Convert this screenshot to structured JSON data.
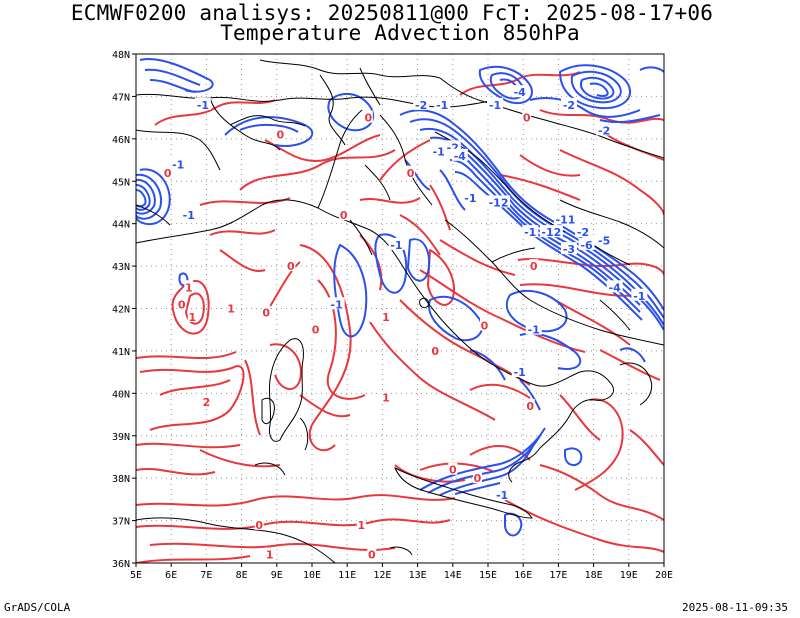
{
  "title": {
    "line1": "ECMWF0200 analisys: 20250811@00 FcT: 2025-08-17+06",
    "line2": "Temperature Advection 850hPa"
  },
  "map": {
    "lon_labels": [
      "5E",
      "6E",
      "7E",
      "8E",
      "9E",
      "10E",
      "11E",
      "12E",
      "13E",
      "14E",
      "15E",
      "16E",
      "17E",
      "18E",
      "19E",
      "20E"
    ],
    "lat_labels": [
      "48N",
      "47N",
      "46N",
      "45N",
      "44N",
      "43N",
      "42N",
      "41N",
      "40N",
      "39N",
      "38N",
      "37N",
      "36N"
    ],
    "lon_range": [
      5,
      20
    ],
    "lat_range": [
      36,
      48
    ],
    "grid": true,
    "colors": {
      "positive": "#e8383d",
      "negative": "#2b50ee",
      "coast": "#000000",
      "grid": "#999999"
    },
    "contour_labels": [
      {
        "text": "0",
        "lon": 16.1,
        "lat": 46.5,
        "color": "positive"
      },
      {
        "text": "-1",
        "lon": 6.9,
        "lat": 46.8,
        "color": "negative"
      },
      {
        "text": "-2",
        "lon": 13.1,
        "lat": 46.8,
        "color": "negative"
      },
      {
        "text": "-1",
        "lon": 13.7,
        "lat": 46.8,
        "color": "negative"
      },
      {
        "text": "-1",
        "lon": 15.2,
        "lat": 46.8,
        "color": "negative"
      },
      {
        "text": "-4",
        "lon": 15.9,
        "lat": 47.1,
        "color": "negative"
      },
      {
        "text": "-2",
        "lon": 17.3,
        "lat": 46.8,
        "color": "negative"
      },
      {
        "text": "-2",
        "lon": 18.3,
        "lat": 46.2,
        "color": "negative"
      },
      {
        "text": "0",
        "lon": 11.6,
        "lat": 46.5,
        "color": "positive"
      },
      {
        "text": "-1",
        "lon": 6.2,
        "lat": 45.4,
        "color": "negative"
      },
      {
        "text": "0",
        "lon": 5.9,
        "lat": 45.2,
        "color": "positive"
      },
      {
        "text": "-1",
        "lon": 6.5,
        "lat": 44.2,
        "color": "negative"
      },
      {
        "text": "-2",
        "lon": 14.0,
        "lat": 45.8,
        "color": "negative"
      },
      {
        "text": "-4",
        "lon": 14.2,
        "lat": 45.6,
        "color": "negative"
      },
      {
        "text": "-1",
        "lon": 13.6,
        "lat": 45.7,
        "color": "negative"
      },
      {
        "text": "0",
        "lon": 9.1,
        "lat": 46.1,
        "color": "positive"
      },
      {
        "text": "0",
        "lon": 12.8,
        "lat": 45.2,
        "color": "positive"
      },
      {
        "text": "-1",
        "lon": 14.5,
        "lat": 44.6,
        "color": "negative"
      },
      {
        "text": "-12",
        "lon": 15.3,
        "lat": 44.5,
        "color": "negative"
      },
      {
        "text": "-11",
        "lon": 17.2,
        "lat": 44.1,
        "color": "negative"
      },
      {
        "text": "-12",
        "lon": 16.8,
        "lat": 43.8,
        "color": "negative"
      },
      {
        "text": "-2",
        "lon": 17.7,
        "lat": 43.8,
        "color": "negative"
      },
      {
        "text": "-5",
        "lon": 18.3,
        "lat": 43.6,
        "color": "negative"
      },
      {
        "text": "-3",
        "lon": 17.3,
        "lat": 43.4,
        "color": "negative"
      },
      {
        "text": "-6",
        "lon": 17.8,
        "lat": 43.5,
        "color": "negative"
      },
      {
        "text": "-1",
        "lon": 16.2,
        "lat": 43.8,
        "color": "negative"
      },
      {
        "text": "-1",
        "lon": 12.4,
        "lat": 43.5,
        "color": "negative"
      },
      {
        "text": "0",
        "lon": 16.3,
        "lat": 43.0,
        "color": "positive"
      },
      {
        "text": "-4",
        "lon": 18.6,
        "lat": 42.5,
        "color": "negative"
      },
      {
        "text": "-1",
        "lon": 19.3,
        "lat": 42.3,
        "color": "negative"
      },
      {
        "text": "0",
        "lon": 10.9,
        "lat": 44.2,
        "color": "positive"
      },
      {
        "text": "0",
        "lon": 9.4,
        "lat": 43.0,
        "color": "positive"
      },
      {
        "text": "1",
        "lon": 6.5,
        "lat": 42.5,
        "color": "positive"
      },
      {
        "text": "0",
        "lon": 6.3,
        "lat": 42.1,
        "color": "positive"
      },
      {
        "text": "1",
        "lon": 7.7,
        "lat": 42.0,
        "color": "positive"
      },
      {
        "text": "1",
        "lon": 6.6,
        "lat": 41.8,
        "color": "positive"
      },
      {
        "text": "0",
        "lon": 8.7,
        "lat": 41.9,
        "color": "positive"
      },
      {
        "text": "-1",
        "lon": 10.7,
        "lat": 42.1,
        "color": "negative"
      },
      {
        "text": "0",
        "lon": 10.1,
        "lat": 41.5,
        "color": "positive"
      },
      {
        "text": "1",
        "lon": 12.1,
        "lat": 41.8,
        "color": "positive"
      },
      {
        "text": "0",
        "lon": 14.9,
        "lat": 41.6,
        "color": "positive"
      },
      {
        "text": "-1",
        "lon": 16.3,
        "lat": 41.5,
        "color": "negative"
      },
      {
        "text": "0",
        "lon": 13.5,
        "lat": 41.0,
        "color": "positive"
      },
      {
        "text": "2",
        "lon": 7.0,
        "lat": 39.8,
        "color": "positive"
      },
      {
        "text": "1",
        "lon": 12.1,
        "lat": 39.9,
        "color": "positive"
      },
      {
        "text": "-1",
        "lon": 15.9,
        "lat": 40.5,
        "color": "negative"
      },
      {
        "text": "0",
        "lon": 16.2,
        "lat": 39.7,
        "color": "positive"
      },
      {
        "text": "0",
        "lon": 14.0,
        "lat": 38.2,
        "color": "positive"
      },
      {
        "text": "-1",
        "lon": 15.4,
        "lat": 37.6,
        "color": "negative"
      },
      {
        "text": "0",
        "lon": 14.7,
        "lat": 38.0,
        "color": "positive"
      },
      {
        "text": "0",
        "lon": 8.5,
        "lat": 36.9,
        "color": "positive"
      },
      {
        "text": "1",
        "lon": 11.4,
        "lat": 36.9,
        "color": "positive"
      },
      {
        "text": "0",
        "lon": 11.7,
        "lat": 36.2,
        "color": "positive"
      },
      {
        "text": "1",
        "lon": 8.8,
        "lat": 36.2,
        "color": "positive"
      }
    ]
  },
  "footer": {
    "left": "GrADS/COLA",
    "right": "2025-08-11-09:35"
  }
}
